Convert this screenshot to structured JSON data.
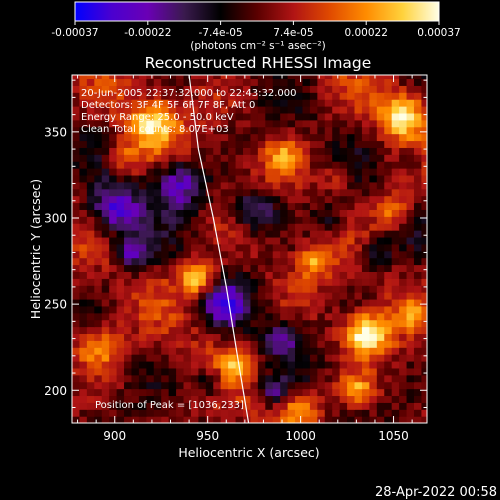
{
  "chart_data": {
    "type": "heatmap",
    "title": "Reconstructed RHESSI Image",
    "xlabel": "Heliocentric X (arcsec)",
    "ylabel": "Heliocentric Y (arcsec)",
    "xlim": [
      877,
      1068
    ],
    "ylim": [
      181,
      383
    ],
    "x_ticks": [
      900,
      950,
      1000,
      1050
    ],
    "y_ticks": [
      200,
      250,
      300,
      350
    ],
    "colorbar": {
      "ticks": [
        "-0.00037",
        "-0.00022",
        "-7.4e-05",
        "7.4e-05",
        "0.00022",
        "0.00037"
      ],
      "units_label": "(photons cm⁻² s⁻¹ asec⁻²)",
      "range": [
        -0.00037,
        0.00037
      ],
      "colors": [
        "#0000ff",
        "#4a00d0",
        "#6a00b5",
        "#3a1a4e",
        "#000000",
        "#5a0000",
        "#b01414",
        "#e04a00",
        "#ff8c00",
        "#ffd23c",
        "#ffffe6"
      ]
    },
    "annotations": {
      "time": "20-Jun-2005 22:37:32.000 to 22:43:32.000",
      "detectors": "Detectors: 3F 4F 5F 6F 7F 8F, Att 0",
      "energy": "Energy Range: 25.0 - 50.0 keV",
      "clean": "Clean    Total counts: 8.07E+03",
      "peak": "Position of Peak = [1036,233]"
    },
    "limb_points": [
      [
        940,
        383
      ],
      [
        945,
        340
      ],
      [
        953,
        300
      ],
      [
        960,
        260
      ],
      [
        966,
        220
      ],
      [
        972,
        181
      ]
    ],
    "peak": [
      1036,
      233
    ],
    "hotspots": [
      [
        1036,
        233,
        12,
        1.0
      ],
      [
        1055,
        360,
        12,
        0.9
      ],
      [
        945,
        265,
        10,
        0.85
      ],
      [
        920,
        355,
        14,
        0.75
      ],
      [
        990,
        335,
        10,
        0.55
      ],
      [
        1050,
        305,
        10,
        0.6
      ],
      [
        1008,
        275,
        9,
        0.55
      ],
      [
        890,
        225,
        12,
        0.55
      ],
      [
        1000,
        190,
        10,
        0.55
      ],
      [
        1030,
        200,
        9,
        0.6
      ],
      [
        1060,
        245,
        8,
        0.5
      ],
      [
        905,
        335,
        10,
        0.45
      ],
      [
        965,
        215,
        8,
        0.45
      ],
      [
        1020,
        325,
        8,
        0.4
      ]
    ],
    "coldspots": [
      [
        900,
        305,
        14,
        0.9
      ],
      [
        935,
        320,
        14,
        0.8
      ],
      [
        975,
        305,
        12,
        0.7
      ],
      [
        960,
        250,
        12,
        0.8
      ],
      [
        910,
        280,
        10,
        0.75
      ],
      [
        990,
        230,
        10,
        0.55
      ],
      [
        1040,
        280,
        8,
        0.5
      ],
      [
        1060,
        335,
        8,
        0.45
      ],
      [
        985,
        200,
        8,
        0.55
      ],
      [
        950,
        205,
        8,
        0.5
      ],
      [
        1015,
        300,
        8,
        0.4
      ]
    ]
  },
  "footer": {
    "timestamp": "28-Apr-2022 00:58"
  }
}
